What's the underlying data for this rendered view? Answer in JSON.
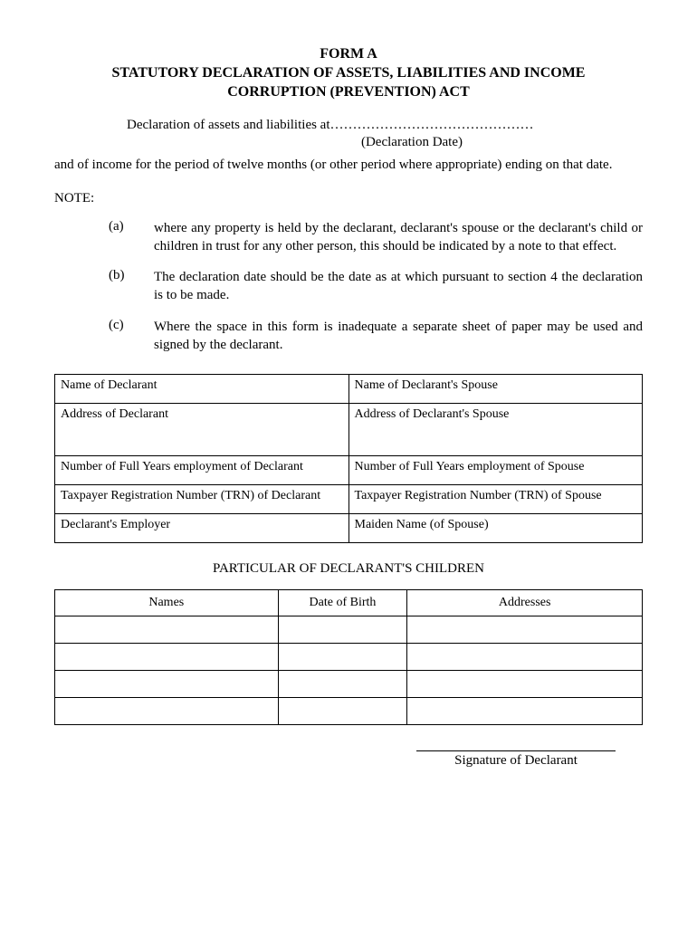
{
  "header": {
    "form_code": "FORM A",
    "title_line1": "STATUTORY DECLARATION OF ASSETS, LIABILITIES AND INCOME",
    "title_line2": "CORRUPTION (PREVENTION) ACT"
  },
  "intro": {
    "declaration_prefix": "Declaration of assets and liabilities at………………………………………",
    "declaration_date_label": "(Declaration Date)",
    "body_text": "and of income for the period of twelve months (or other period where appropriate) ending on that date."
  },
  "note": {
    "label": "NOTE:",
    "items": [
      {
        "letter": "(a)",
        "text": "where any property is held by the declarant, declarant's spouse or the declarant's child or children in trust for any other person, this should be indicated by a note to that effect."
      },
      {
        "letter": "(b)",
        "text": "The declaration date should be the date as at which pursuant to section 4 the declaration is to be made."
      },
      {
        "letter": "(c)",
        "text": "Where the space in this form is inadequate a separate sheet of paper may be used and signed by the declarant."
      }
    ]
  },
  "declarant_table": {
    "rows": [
      {
        "left": "Name of Declarant",
        "right": "Name of Declarant's Spouse",
        "tall": false
      },
      {
        "left": "Address of Declarant",
        "right": "Address of Declarant's Spouse",
        "tall": true
      },
      {
        "left": "Number of Full Years employment of Declarant",
        "right": "Number of Full Years employment of Spouse",
        "tall": false
      },
      {
        "left": "Taxpayer Registration Number (TRN) of Declarant",
        "right": "Taxpayer Registration Number (TRN) of Spouse",
        "tall": false
      },
      {
        "left": "Declarant's Employer",
        "right": "Maiden Name (of Spouse)",
        "tall": false
      }
    ]
  },
  "children_section": {
    "heading": "PARTICULAR OF DECLARANT'S CHILDREN",
    "columns": [
      "Names",
      "Date of Birth",
      "Addresses"
    ],
    "blank_rows": 4
  },
  "signature": {
    "label": "Signature of Declarant"
  }
}
